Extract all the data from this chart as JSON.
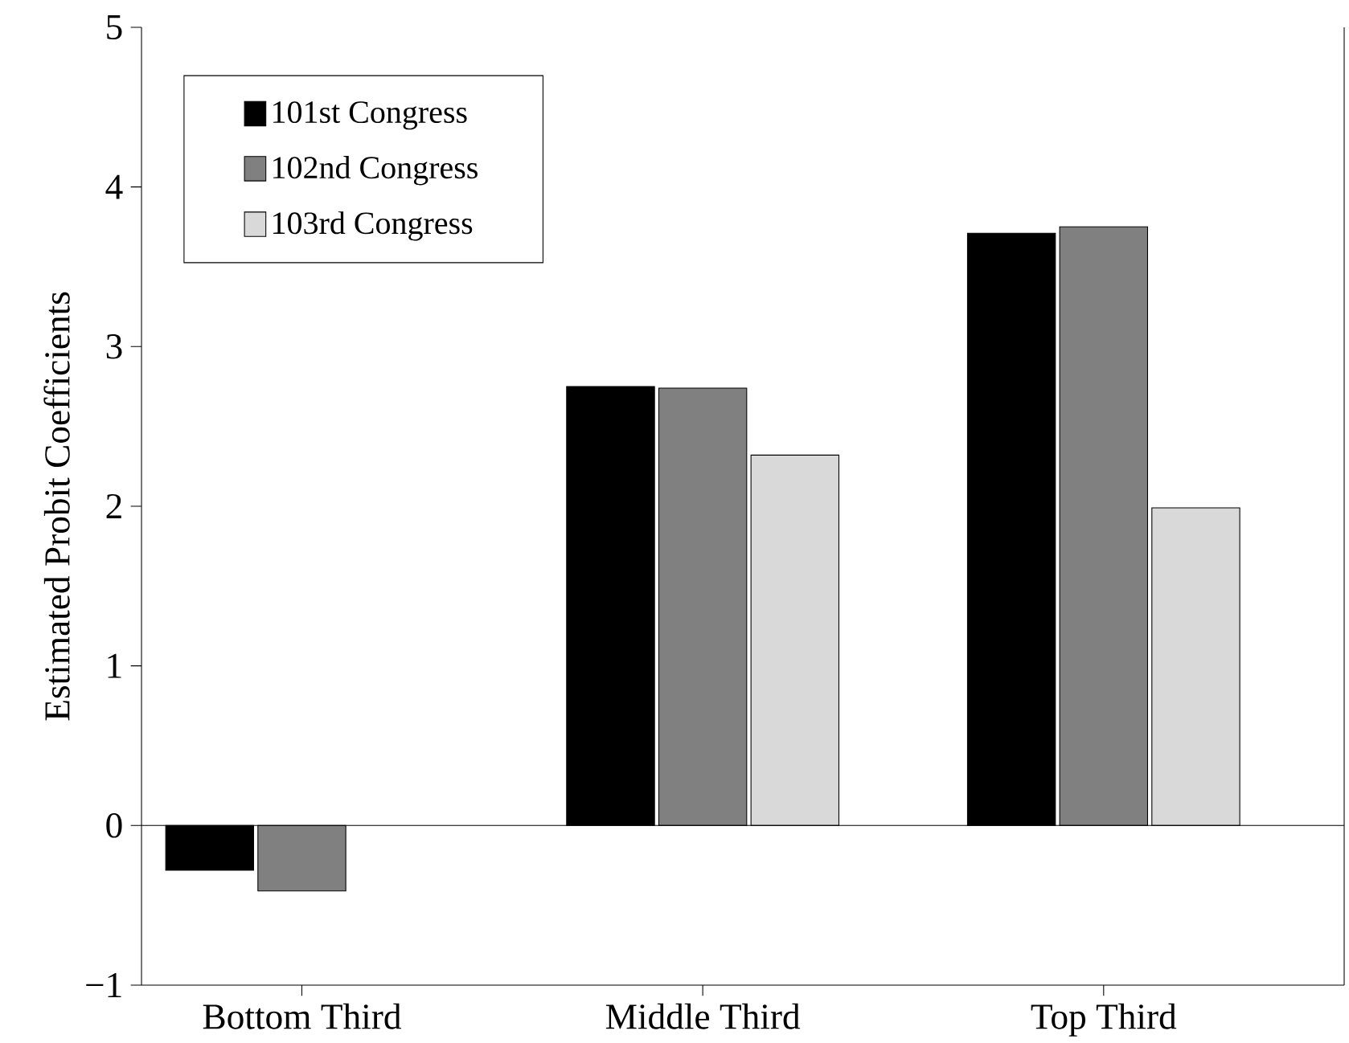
{
  "chart_data": {
    "type": "bar",
    "ylabel": "Estimated Probit Coefficients",
    "categories": [
      "Bottom Third",
      "Middle Third",
      "Top Third"
    ],
    "series": [
      {
        "name": "101st Congress",
        "color": "#000000",
        "values": [
          -0.28,
          2.75,
          3.71
        ]
      },
      {
        "name": "102nd Congress",
        "color": "#808080",
        "values": [
          -0.41,
          2.74,
          3.75
        ]
      },
      {
        "name": "103rd Congress",
        "color": "#d9d9d9",
        "values": [
          null,
          2.32,
          1.99
        ]
      }
    ],
    "ylim": [
      -1,
      5
    ],
    "yticks": [
      {
        "value": -1,
        "label": "−1"
      },
      0,
      1,
      2,
      3,
      4,
      5
    ],
    "ref_lines": [
      {
        "axis": "y",
        "value": 0
      }
    ],
    "legend": "top left",
    "grid": false
  }
}
